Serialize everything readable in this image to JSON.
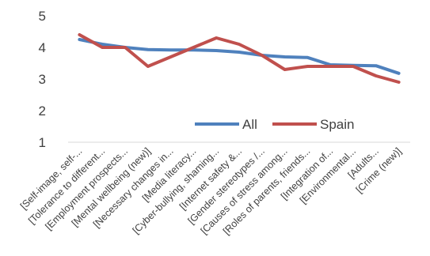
{
  "chart_data": {
    "type": "line",
    "title": "",
    "xlabel": "",
    "ylabel": "",
    "ylim": [
      1,
      5
    ],
    "yticks": [
      "1",
      "2",
      "3",
      "4",
      "5"
    ],
    "grid": false,
    "legend_position": "center",
    "categories": [
      "[Self-image, self-...",
      "[Tolerance to different...",
      "[Employment prospects...",
      "[Mental wellbeing (new)]",
      "[Necessary changes in...",
      "[Media literacy...",
      "[Cyber-bullying, shaming...",
      "[Internet safety &...",
      "[Gender stereotypes /...",
      "[Causes of stress among...",
      "[Roles of parents, friends...",
      "[Integration of...",
      "[Environmental...",
      "[Adults...",
      "[Crime (new)]"
    ],
    "series": [
      {
        "name": "All",
        "color": "#4f81bd",
        "values": [
          4.25,
          4.1,
          4.0,
          3.93,
          3.92,
          3.92,
          3.9,
          3.85,
          3.75,
          3.7,
          3.68,
          3.45,
          3.43,
          3.42,
          3.18
        ]
      },
      {
        "name": "Spain",
        "color": "#c0504d",
        "values": [
          4.4,
          4.0,
          4.0,
          3.4,
          3.7,
          4.0,
          4.3,
          4.1,
          3.75,
          3.3,
          3.4,
          3.4,
          3.4,
          3.1,
          2.9
        ]
      }
    ]
  }
}
